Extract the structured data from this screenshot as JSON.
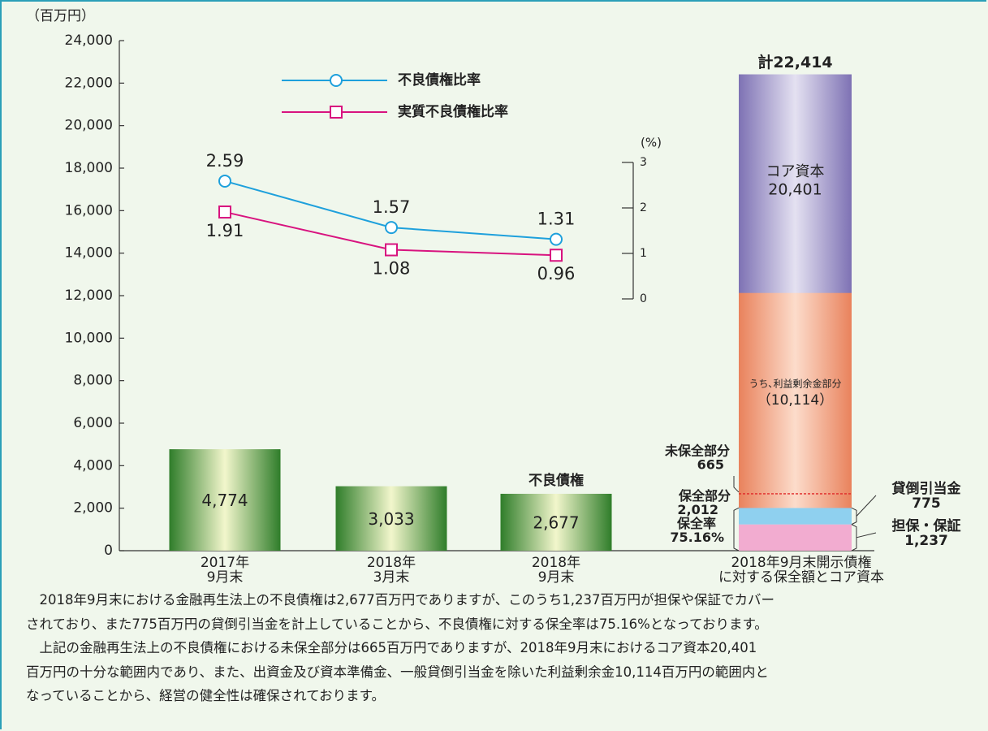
{
  "chart_data": [
    {
      "type": "bar",
      "y_axis_label": "（百万円）",
      "ylim": [
        0,
        24000
      ],
      "yticks": [
        0,
        {
          "value": 2000,
          "label": "2,000"
        },
        {
          "value": 4000,
          "label": "4,000"
        },
        {
          "value": 6000,
          "label": "6,000"
        },
        {
          "value": 8000,
          "label": "8,000"
        },
        {
          "value": 10000,
          "label": "10,000"
        },
        {
          "value": 12000,
          "label": "12,000"
        },
        {
          "value": 14000,
          "label": "14,000"
        },
        {
          "value": 16000,
          "label": "16,000"
        },
        {
          "value": 18000,
          "label": "18,000"
        },
        {
          "value": 20000,
          "label": "20,000"
        },
        {
          "value": 22000,
          "label": "22,000"
        },
        {
          "value": 24000,
          "label": "24,000"
        }
      ],
      "categories": [
        [
          "2017年",
          "9月末"
        ],
        [
          "2018年",
          "3月末"
        ],
        [
          "2018年",
          "9月末"
        ]
      ],
      "values": [
        4774,
        3033,
        2677
      ],
      "value_labels": [
        "4,774",
        "3,033",
        "2,677"
      ],
      "color": "#2f7d2a",
      "bar_annotation": "不良債権",
      "stack": {
        "category": [
          "2018年9月末開示債権",
          "に対する保全額とコア資本"
        ],
        "total": 22414,
        "total_label": "計22,414",
        "segments": [
          {
            "name": "担保・保証",
            "value": 1237,
            "value_label": "1,237",
            "color": "#f2acd0"
          },
          {
            "name": "貸倒引当金",
            "value": 775,
            "value_label": "775",
            "color": "#8fd0ef"
          },
          {
            "name": "コア資本",
            "value": 20401,
            "value_label": "20,401",
            "color": "#7e72b4"
          }
        ],
        "sub_segment": {
          "name": "うち､利益剰余金部分",
          "value": 10114,
          "value_label": "（10,114）",
          "color": "#e9825c"
        },
        "unprotected": {
          "name": "未保全部分",
          "value": 665,
          "value_label": "665",
          "color": "#e02828"
        },
        "coverage": {
          "name": "保全部分",
          "value": 2012,
          "value_label": "2,012",
          "rate_name": "保全率",
          "rate": 75.16,
          "rate_label": "75.16%"
        }
      }
    },
    {
      "type": "line",
      "y_axis_label": "(%)",
      "ylim": [
        0,
        3
      ],
      "yticks": [
        0,
        1,
        2,
        3
      ],
      "series": [
        {
          "name": "不良債権比率",
          "color": "#1ea0dc",
          "marker": "circle",
          "values": [
            2.59,
            1.57,
            1.31
          ]
        },
        {
          "name": "実質不良債権比率",
          "color": "#d8137f",
          "marker": "square",
          "values": [
            1.91,
            1.08,
            0.96
          ]
        }
      ]
    }
  ],
  "text": [
    [
      "　2018年9月末における金融再生法上の不良債権は2,677百万円でありますが、このうち1,237百万円が担保や保証でカバー",
      "されており、また775百万円の貸倒引当金を計上していることから、不良債権に対する保全率は75.16%となっております。"
    ],
    [
      "　上記の金融再生法上の不良債権における未保全部分は665百万円でありますが、2018年9月末におけるコア資本20,401",
      "百万円の十分な範囲内であり、また、出資金及び資本準備金、一般貸倒引当金を除いた利益剰余金10,114百万円の範囲内と",
      "なっていることから、経営の健全性は確保されております。"
    ]
  ]
}
